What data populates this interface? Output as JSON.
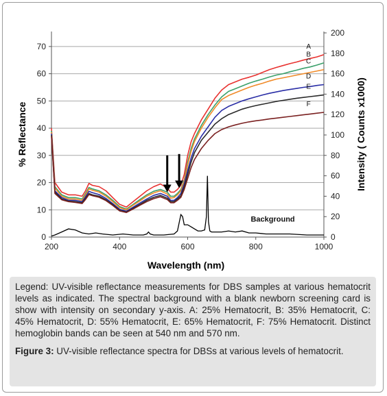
{
  "chart_data": {
    "type": "line",
    "xlabel": "Wavelength (nm)",
    "ylabel": "% Reflectance",
    "y2label": "Intensity ( Counts x1000)",
    "xlim": [
      200,
      1000
    ],
    "ylim": [
      0,
      75
    ],
    "y2lim": [
      0,
      200
    ],
    "x_ticks": [
      200,
      400,
      600,
      800,
      1000
    ],
    "y_ticks": [
      0,
      10,
      20,
      30,
      40,
      50,
      60,
      70
    ],
    "y2_ticks": [
      0,
      20,
      40,
      60,
      80,
      100,
      120,
      140,
      160,
      180,
      200
    ],
    "grid": "horizontal",
    "x": [
      200,
      210,
      230,
      250,
      270,
      290,
      300,
      310,
      320,
      340,
      360,
      380,
      400,
      420,
      440,
      460,
      480,
      500,
      520,
      540,
      550,
      560,
      570,
      580,
      590,
      600,
      610,
      620,
      640,
      660,
      680,
      700,
      720,
      740,
      760,
      780,
      800,
      820,
      840,
      860,
      880,
      900,
      920,
      940,
      960,
      980,
      1000
    ],
    "series": [
      {
        "name": "A",
        "color": "#e8312f",
        "values": [
          40,
          20,
          16.5,
          15.5,
          15.5,
          15,
          17,
          19.7,
          19,
          18.5,
          17,
          14.5,
          12,
          11,
          13,
          15,
          17,
          18.5,
          19.5,
          18,
          16.5,
          16.5,
          17.5,
          19,
          23,
          30,
          35,
          38,
          43,
          47,
          51,
          54,
          56,
          57,
          58,
          58.7,
          59.5,
          60.5,
          61.5,
          62.3,
          63,
          63.7,
          64.3,
          65,
          65.6,
          66.2,
          67
        ]
      },
      {
        "name": "B",
        "color": "#3aa06a",
        "values": [
          39,
          18.5,
          15.5,
          14.5,
          14.5,
          14,
          16,
          18.2,
          17.7,
          17,
          15.5,
          13.5,
          11.2,
          10.3,
          12,
          13.8,
          15.5,
          16.8,
          17.5,
          16.5,
          15,
          15,
          16,
          17.5,
          21,
          27.5,
          32.5,
          36,
          41,
          45,
          48.5,
          51.5,
          53.5,
          54.5,
          55.5,
          56.5,
          57.3,
          58,
          58.8,
          59.5,
          60,
          60.7,
          61.3,
          62,
          62.5,
          63.2,
          64
        ]
      },
      {
        "name": "C",
        "color": "#f08a28",
        "values": [
          38.5,
          18,
          15,
          14,
          14,
          13.5,
          15.5,
          17.7,
          17.2,
          16.5,
          15,
          13,
          10.8,
          10,
          11.7,
          13.3,
          15,
          16.2,
          17,
          15.8,
          14.3,
          14.5,
          15.5,
          17,
          20.5,
          26.5,
          31.5,
          35,
          40,
          44,
          47.5,
          50.5,
          52,
          53,
          54,
          55,
          55.8,
          56.5,
          57.3,
          58,
          58.5,
          59,
          59.5,
          60,
          60.5,
          61,
          61.5
        ]
      },
      {
        "name": "D",
        "color": "#2a2ea6",
        "values": [
          38,
          17,
          14.5,
          13.5,
          13.5,
          13,
          14.8,
          16.8,
          16.3,
          15.6,
          14.2,
          12.3,
          10.2,
          9.5,
          11,
          12.5,
          14,
          15.3,
          16,
          15,
          13.5,
          13.5,
          14.5,
          16,
          19.5,
          24.5,
          29,
          32.5,
          37,
          40.5,
          44,
          46.5,
          48,
          49,
          50,
          50.8,
          51.5,
          52.2,
          52.8,
          53.3,
          53.8,
          54.2,
          54.6,
          55,
          55.3,
          55.7,
          56
        ]
      },
      {
        "name": "E",
        "color": "#2a2a2a",
        "values": [
          37.5,
          16.5,
          14,
          13.2,
          13,
          12.6,
          14.2,
          16,
          15.5,
          15,
          13.7,
          11.9,
          9.8,
          9.2,
          10.6,
          12,
          13.5,
          14.6,
          15.3,
          14.3,
          13,
          13,
          14,
          15.2,
          18.5,
          23,
          27.5,
          31,
          35.5,
          38.5,
          41.5,
          43.5,
          45,
          46,
          47,
          47.7,
          48.3,
          48.8,
          49.3,
          49.8,
          50.2,
          50.6,
          51,
          51.3,
          51.6,
          51.9,
          52.2
        ]
      },
      {
        "name": "F",
        "color": "#7a2020",
        "values": [
          37,
          16,
          13.7,
          13,
          12.7,
          12.3,
          13.8,
          15.6,
          15.2,
          14.6,
          13.4,
          11.6,
          9.6,
          9,
          10.3,
          11.7,
          13,
          14.1,
          14.8,
          13.8,
          12.6,
          12.6,
          13.5,
          14.6,
          17.5,
          21.5,
          25.5,
          28.5,
          32.5,
          35.5,
          38,
          39.5,
          40.5,
          41.2,
          41.8,
          42.3,
          42.7,
          43,
          43.4,
          43.7,
          44,
          44.3,
          44.6,
          44.9,
          45.2,
          45.5,
          45.8
        ]
      }
    ],
    "background": {
      "name": "Background",
      "axis": "secondary",
      "color": "#000000",
      "x": [
        200,
        210,
        230,
        250,
        270,
        290,
        310,
        330,
        350,
        380,
        410,
        440,
        470,
        480,
        485,
        490,
        500,
        530,
        560,
        570,
        575,
        580,
        585,
        590,
        600,
        610,
        620,
        630,
        640,
        650,
        655,
        658,
        661,
        665,
        670,
        680,
        700,
        720,
        740,
        760,
        780,
        800,
        830,
        860,
        900,
        950,
        1000
      ],
      "values": [
        1,
        2,
        5,
        8,
        7,
        4,
        3,
        4,
        3,
        2,
        3,
        2,
        2,
        3,
        5,
        3,
        2,
        2,
        3,
        6,
        14,
        22,
        20,
        12,
        12,
        10,
        8,
        6,
        6,
        7,
        20,
        60,
        15,
        6,
        5,
        5,
        5,
        6,
        5,
        6,
        4,
        4,
        3,
        3,
        3,
        2,
        2
      ]
    },
    "annotations": [
      {
        "text": "A",
        "series": "A"
      },
      {
        "text": "B",
        "series": "B"
      },
      {
        "text": "C",
        "series": "C"
      },
      {
        "text": "D",
        "series": "D"
      },
      {
        "text": "E",
        "series": "E"
      },
      {
        "text": "F",
        "series": "F"
      },
      {
        "text": "Background",
        "series": "Background"
      }
    ],
    "arrows": [
      {
        "x": 540,
        "y_from": 30,
        "y_to": 16.5
      },
      {
        "x": 575,
        "y_from": 30.5,
        "y_to": 18
      }
    ]
  },
  "caption": {
    "legend_text": "Legend: UV-visible reflectance measurements for DBS samples at various hematocrit levels as indicated. The spectral background with a blank newborn screening card is show with intensity on secondary y-axis. A: 25% Hematocrit, B: 35% Hematocrit, C: 45% Hematocrit, D: 55% Hematocrit, E: 65% Hematocrit, F: 75% Hematocrit. Distinct hemoglobin bands can be seen at 540 nm and 570 nm.",
    "figure_label": "Figure 3:",
    "figure_text": "UV-visible reflectance spectra for DBSs at various levels of hematocrit."
  }
}
